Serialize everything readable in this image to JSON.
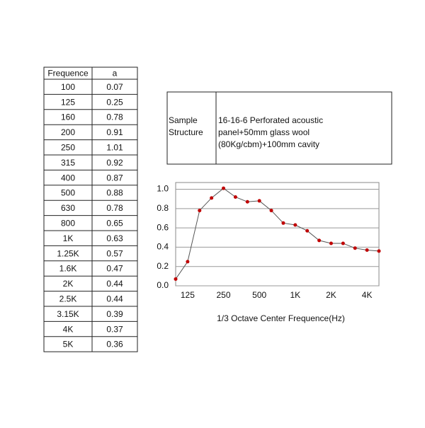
{
  "table": {
    "header": [
      "Frequence",
      "a"
    ],
    "rows": [
      [
        "100",
        "0.07"
      ],
      [
        "125",
        "0.25"
      ],
      [
        "160",
        "0.78"
      ],
      [
        "200",
        "0.91"
      ],
      [
        "250",
        "1.01"
      ],
      [
        "315",
        "0.92"
      ],
      [
        "400",
        "0.87"
      ],
      [
        "500",
        "0.88"
      ],
      [
        "630",
        "0.78"
      ],
      [
        "800",
        "0.65"
      ],
      [
        "1K",
        "0.63"
      ],
      [
        "1.25K",
        "0.57"
      ],
      [
        "1.6K",
        "0.47"
      ],
      [
        "2K",
        "0.44"
      ],
      [
        "2.5K",
        "0.44"
      ],
      [
        "3.15K",
        "0.39"
      ],
      [
        "4K",
        "0.37"
      ],
      [
        "5K",
        "0.36"
      ]
    ]
  },
  "sample": {
    "label": [
      "Sample",
      "Structure"
    ],
    "text": [
      "16-16-6 Perforated acoustic",
      "panel+50mm glass wool",
      "(80Kg/cbm)+100mm cavity"
    ]
  },
  "chart_data": {
    "type": "line",
    "x_label": "1/3 Octave Center Frequence(Hz)",
    "categories": [
      null,
      "125",
      null,
      null,
      "250",
      null,
      null,
      "500",
      null,
      null,
      "1K",
      null,
      null,
      "2K",
      null,
      null,
      "4K",
      null
    ],
    "values": [
      0.07,
      0.25,
      0.78,
      0.91,
      1.01,
      0.92,
      0.87,
      0.88,
      0.78,
      0.65,
      0.63,
      0.57,
      0.47,
      0.44,
      0.44,
      0.39,
      0.37,
      0.36
    ],
    "color": "#555555",
    "marker_color": "#c00000",
    "ylim": [
      0,
      1.07
    ],
    "yticks": [
      {
        "value": 0,
        "label": "0.0"
      },
      {
        "value": 0.2,
        "label": "0.2"
      },
      {
        "value": 0.4,
        "label": "0.4"
      },
      {
        "value": 0.6,
        "label": "0.6"
      },
      {
        "value": 0.8,
        "label": "0.8"
      },
      {
        "value": 1,
        "label": "1.0"
      }
    ],
    "grid": true
  }
}
